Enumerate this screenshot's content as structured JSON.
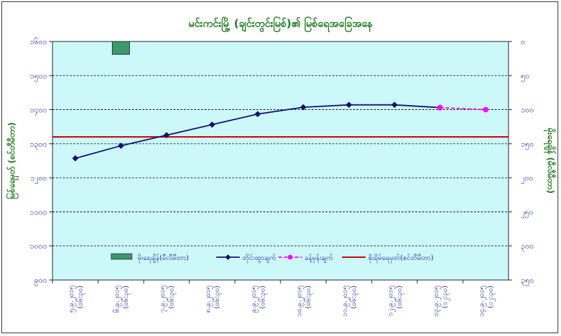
{
  "chart_data": {
    "type": "line",
    "title": "မင်းကင်းမြို့ (ချင်းတွင်းမြစ်)၏ မြစ်ရေအခြေအနေ",
    "ylabel": "မြစ်ရေမှတ် (စင်တီမီတာ)",
    "y2label": "မိုးရေချိန် (မီလီမီတာ)",
    "ylim": [
      900,
      1600
    ],
    "y2lim": [
      0,
      350
    ],
    "y2_reversed": true,
    "yticks": [
      900,
      1000,
      1100,
      1200,
      1300,
      1400,
      1500,
      1600
    ],
    "ytick_labels": [
      "၉၀၀",
      "၁၀၀၀",
      "၁၁၀၀",
      "၁၂၀၀",
      "၁၃၀၀",
      "၁၄၀၀",
      "၁၅၀၀",
      "၁၆၀၀"
    ],
    "y2tick_labels": [
      "၃၅၀",
      "၃၀၀",
      "၂၅၀",
      "၂၀၀",
      "၁၅၀",
      "၁၀၀",
      "၅၀",
      "၀"
    ],
    "categories": [
      [
        "၅.၉.၂၀၁၅",
        "(၀၆:၃၀)"
      ],
      [
        "၆.၉.၂၀၁၅",
        "(၀၆:၃၀)"
      ],
      [
        "၇.၉.၂၀၁၅",
        "(၀၆:၃၀)"
      ],
      [
        "၈.၉.၂၀၁၅",
        "(၀၆:၃၀)"
      ],
      [
        "၉.၉.၂၀၁၅",
        "(၀၆:၃၀)"
      ],
      [
        "၁၀.၉.၂၀၁၅",
        "(၀၆:၃၀)"
      ],
      [
        "၁၁.၉.၂၀၁၅",
        "(၀၆:၃၀)"
      ],
      [
        "၁၂.၉.၂၀၁၅",
        "(၀၆:၃၀)"
      ],
      [
        "၁၃.၉.၂၀၁၅",
        "(၁၂:၃၀)"
      ],
      [
        "၁၄.၉.၂၀၁၅",
        "(၁၂:၃၀)"
      ]
    ],
    "series": [
      {
        "name": "မိုးရေချိန်(မီလီမီတာ)",
        "type": "bar",
        "axis": "y2",
        "color": "#3a9a6a",
        "values": [
          null,
          19,
          null,
          null,
          null,
          null,
          null,
          null,
          null,
          null
        ]
      },
      {
        "name": "တိုင်းထွာချက်",
        "type": "line",
        "axis": "y",
        "color": "#10106e",
        "marker": "diamond",
        "values": [
          1257,
          1294,
          1325,
          1356,
          1387,
          1407,
          1414,
          1414,
          1406,
          null
        ]
      },
      {
        "name": "ခန့်မှန်းချက်",
        "type": "line",
        "axis": "y",
        "color": "#ff00ff",
        "marker": "circle",
        "dashed": true,
        "values": [
          null,
          null,
          null,
          null,
          null,
          null,
          null,
          null,
          1406,
          1400
        ]
      },
      {
        "name": "စိုးရိမ်ရေမှတ်(စင်တီမီတာ)",
        "type": "hline",
        "axis": "y",
        "color": "#cc0000",
        "value": 1320
      }
    ],
    "background": "#ccf8fa",
    "grid": true,
    "legend_position": "bottom"
  }
}
